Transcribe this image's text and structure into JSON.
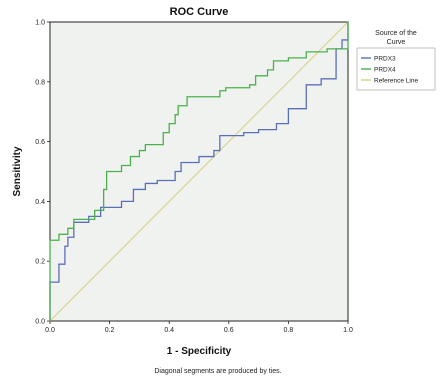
{
  "chart_data": {
    "type": "line",
    "title": "ROC Curve",
    "xlabel": "1 - Specificity",
    "ylabel": "Sensitivity",
    "xlim": [
      0,
      1
    ],
    "ylim": [
      0,
      1
    ],
    "xticks": [
      "0.0",
      "0.2",
      "0.4",
      "0.6",
      "0.8",
      "1.0"
    ],
    "yticks": [
      "0.0",
      "0.2",
      "0.4",
      "0.6",
      "0.8",
      "1.0"
    ],
    "legend_title": "Source of the Curve",
    "legend_position": "right",
    "grid": false,
    "footnote": "Diagonal segments are produced by ties.",
    "series": [
      {
        "name": "PRDX3",
        "color": "#5b6fb8",
        "points": [
          [
            0,
            0
          ],
          [
            0,
            0.13
          ],
          [
            0.03,
            0.13
          ],
          [
            0.03,
            0.19
          ],
          [
            0.05,
            0.19
          ],
          [
            0.05,
            0.25
          ],
          [
            0.06,
            0.25
          ],
          [
            0.06,
            0.28
          ],
          [
            0.08,
            0.28
          ],
          [
            0.08,
            0.33
          ],
          [
            0.13,
            0.33
          ],
          [
            0.13,
            0.35
          ],
          [
            0.17,
            0.35
          ],
          [
            0.17,
            0.38
          ],
          [
            0.24,
            0.38
          ],
          [
            0.24,
            0.4
          ],
          [
            0.28,
            0.4
          ],
          [
            0.28,
            0.44
          ],
          [
            0.32,
            0.44
          ],
          [
            0.32,
            0.46
          ],
          [
            0.36,
            0.46
          ],
          [
            0.36,
            0.47
          ],
          [
            0.42,
            0.47
          ],
          [
            0.42,
            0.5
          ],
          [
            0.44,
            0.5
          ],
          [
            0.44,
            0.53
          ],
          [
            0.5,
            0.53
          ],
          [
            0.5,
            0.55
          ],
          [
            0.55,
            0.55
          ],
          [
            0.55,
            0.57
          ],
          [
            0.57,
            0.57
          ],
          [
            0.57,
            0.62
          ],
          [
            0.65,
            0.62
          ],
          [
            0.65,
            0.63
          ],
          [
            0.7,
            0.63
          ],
          [
            0.7,
            0.64
          ],
          [
            0.76,
            0.64
          ],
          [
            0.76,
            0.66
          ],
          [
            0.8,
            0.66
          ],
          [
            0.8,
            0.71
          ],
          [
            0.86,
            0.71
          ],
          [
            0.86,
            0.79
          ],
          [
            0.91,
            0.79
          ],
          [
            0.91,
            0.81
          ],
          [
            0.96,
            0.81
          ],
          [
            0.96,
            0.91
          ],
          [
            0.98,
            0.91
          ],
          [
            0.98,
            0.94
          ],
          [
            1,
            0.94
          ],
          [
            1,
            1
          ]
        ]
      },
      {
        "name": "PRDX4",
        "color": "#4cb04c",
        "points": [
          [
            0,
            0
          ],
          [
            0,
            0.27
          ],
          [
            0.03,
            0.27
          ],
          [
            0.03,
            0.29
          ],
          [
            0.06,
            0.29
          ],
          [
            0.06,
            0.31
          ],
          [
            0.08,
            0.31
          ],
          [
            0.08,
            0.34
          ],
          [
            0.15,
            0.34
          ],
          [
            0.15,
            0.37
          ],
          [
            0.18,
            0.37
          ],
          [
            0.18,
            0.44
          ],
          [
            0.19,
            0.44
          ],
          [
            0.19,
            0.5
          ],
          [
            0.24,
            0.5
          ],
          [
            0.24,
            0.52
          ],
          [
            0.27,
            0.52
          ],
          [
            0.27,
            0.55
          ],
          [
            0.3,
            0.55
          ],
          [
            0.3,
            0.57
          ],
          [
            0.32,
            0.57
          ],
          [
            0.32,
            0.59
          ],
          [
            0.38,
            0.59
          ],
          [
            0.38,
            0.63
          ],
          [
            0.4,
            0.63
          ],
          [
            0.4,
            0.66
          ],
          [
            0.42,
            0.66
          ],
          [
            0.42,
            0.69
          ],
          [
            0.43,
            0.69
          ],
          [
            0.43,
            0.72
          ],
          [
            0.46,
            0.72
          ],
          [
            0.46,
            0.75
          ],
          [
            0.57,
            0.75
          ],
          [
            0.57,
            0.77
          ],
          [
            0.59,
            0.77
          ],
          [
            0.59,
            0.78
          ],
          [
            0.67,
            0.78
          ],
          [
            0.67,
            0.79
          ],
          [
            0.69,
            0.79
          ],
          [
            0.69,
            0.82
          ],
          [
            0.73,
            0.82
          ],
          [
            0.73,
            0.84
          ],
          [
            0.75,
            0.84
          ],
          [
            0.75,
            0.87
          ],
          [
            0.8,
            0.87
          ],
          [
            0.8,
            0.88
          ],
          [
            0.86,
            0.88
          ],
          [
            0.86,
            0.9
          ],
          [
            0.93,
            0.9
          ],
          [
            0.93,
            0.91
          ],
          [
            1,
            0.91
          ],
          [
            1,
            1
          ]
        ]
      },
      {
        "name": "Reference Line",
        "color": "#d8cf80",
        "points": [
          [
            0,
            0
          ],
          [
            1,
            1
          ]
        ]
      }
    ]
  }
}
